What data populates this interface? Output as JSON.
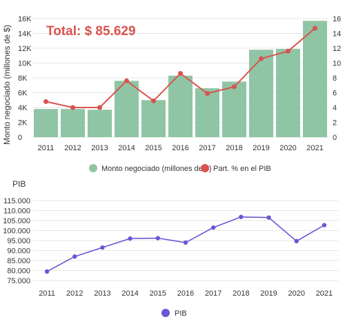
{
  "colors": {
    "bar": "#8fc5a4",
    "line_pct": "#d9534f",
    "line_pib": "#6a56d6",
    "total_text": "#d9534f",
    "grid": "#e6e6e6"
  },
  "chart_data": [
    {
      "type": "bar",
      "categories": [
        "2011",
        "2012",
        "2013",
        "2014",
        "2015",
        "2016",
        "2017",
        "2018",
        "2019",
        "2020",
        "2021"
      ],
      "ylabel": "Monto negociado (millones de $)",
      "ylim": [
        0,
        16000
      ],
      "yticks_left": [
        "0",
        "2K",
        "4K",
        "6K",
        "8K",
        "10K",
        "12K",
        "14K",
        "16K"
      ],
      "yticks_right": [
        "0",
        "2",
        "4",
        "6",
        "8",
        "10",
        "12",
        "14",
        "16"
      ],
      "y2lim": [
        0,
        16
      ],
      "annotation": "Total: $ 85.629",
      "grid": true,
      "legend_position": "bottom",
      "series": [
        {
          "name": "Monto negociado (millones de $)",
          "kind": "bar",
          "axis": "left",
          "values": [
            3800,
            3800,
            3700,
            7600,
            5000,
            8300,
            6600,
            7500,
            11800,
            11900,
            15700
          ]
        },
        {
          "name": "Part. % en el PIB",
          "kind": "line",
          "axis": "right",
          "values": [
            4.8,
            4.0,
            4.0,
            7.6,
            4.9,
            8.6,
            5.9,
            6.8,
            10.6,
            11.6,
            14.7
          ]
        }
      ]
    },
    {
      "type": "line",
      "title": "PIB",
      "categories": [
        "2011",
        "2012",
        "2013",
        "2014",
        "2015",
        "2016",
        "2017",
        "2018",
        "2019",
        "2020",
        "2021"
      ],
      "ylim": [
        75000,
        115000
      ],
      "yticks": [
        "75.000",
        "80.000",
        "85.000",
        "90.000",
        "95.000",
        "100.000",
        "105.000",
        "110.000",
        "115.000"
      ],
      "grid": true,
      "legend_position": "bottom",
      "series": [
        {
          "name": "PIB",
          "values": [
            79500,
            87000,
            91500,
            96000,
            96200,
            94000,
            101500,
            106800,
            106500,
            94700,
            102700
          ]
        }
      ]
    }
  ]
}
